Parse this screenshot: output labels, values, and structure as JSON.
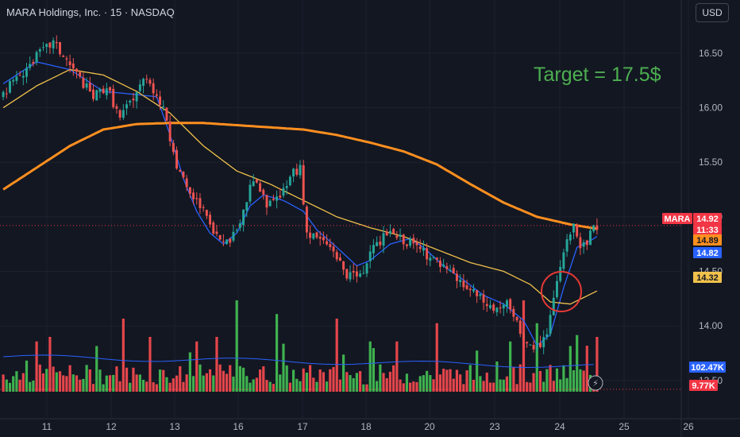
{
  "header": {
    "title": "MARA Holdings, Inc. · 15 · NASDAQ",
    "currency_button": "USD"
  },
  "annotation": {
    "target_text": "Target = 17.5$",
    "circle_color": "#e53935"
  },
  "colors": {
    "background": "#131722",
    "up": "#26a69a",
    "down": "#ef5350",
    "vol_up": "#3fb24f",
    "vol_down": "#e5464b",
    "ma_fast": "#2962ff",
    "ma_mid": "#f0c14b",
    "ma_slow": "#ff8f1f",
    "volume_ma": "#2962ff"
  },
  "chart_data": {
    "type": "candlestick",
    "title": "",
    "xlabel": "",
    "ylabel": "",
    "ylim": [
      13.2,
      16.9
    ],
    "x_ticks": [
      "11",
      "12",
      "13",
      "16",
      "17",
      "18",
      "20",
      "23",
      "24",
      "25",
      "26"
    ],
    "y_ticks": [
      "16.50",
      "16.00",
      "15.50",
      "15.00",
      "14.50",
      "14.00",
      "13.50"
    ],
    "price_anchors": [
      [
        0,
        16.1
      ],
      [
        6,
        16.3
      ],
      [
        12,
        16.5
      ],
      [
        16,
        16.6
      ],
      [
        22,
        16.35
      ],
      [
        28,
        16.1
      ],
      [
        32,
        16.2
      ],
      [
        36,
        15.9
      ],
      [
        40,
        16.1
      ],
      [
        44,
        16.3
      ],
      [
        48,
        16.05
      ],
      [
        50,
        15.9
      ],
      [
        52,
        15.55
      ],
      [
        56,
        15.25
      ],
      [
        60,
        15.1
      ],
      [
        64,
        14.85
      ],
      [
        68,
        14.75
      ],
      [
        72,
        14.95
      ],
      [
        76,
        15.35
      ],
      [
        80,
        15.1
      ],
      [
        84,
        15.2
      ],
      [
        88,
        15.4
      ],
      [
        90,
        15.45
      ],
      [
        92,
        14.85
      ],
      [
        96,
        14.8
      ],
      [
        100,
        14.7
      ],
      [
        104,
        14.45
      ],
      [
        108,
        14.45
      ],
      [
        112,
        14.7
      ],
      [
        116,
        14.85
      ],
      [
        120,
        14.8
      ],
      [
        124,
        14.75
      ],
      [
        128,
        14.65
      ],
      [
        132,
        14.55
      ],
      [
        136,
        14.45
      ],
      [
        140,
        14.35
      ],
      [
        144,
        14.25
      ],
      [
        148,
        14.15
      ],
      [
        152,
        14.2
      ],
      [
        156,
        13.95
      ],
      [
        160,
        13.75
      ],
      [
        164,
        13.95
      ],
      [
        166,
        14.25
      ],
      [
        168,
        14.5
      ],
      [
        170,
        14.78
      ],
      [
        172,
        14.98
      ],
      [
        174,
        14.72
      ],
      [
        176,
        14.78
      ],
      [
        178,
        14.92
      ]
    ],
    "candle_count": 179,
    "moving_averages": [
      {
        "color": "#2962ff",
        "width": 1.3,
        "points": [
          [
            0,
            16.22
          ],
          [
            10,
            16.42
          ],
          [
            20,
            16.35
          ],
          [
            30,
            16.15
          ],
          [
            40,
            16.12
          ],
          [
            46,
            16.1
          ],
          [
            50,
            15.75
          ],
          [
            54,
            15.35
          ],
          [
            58,
            15.05
          ],
          [
            62,
            14.85
          ],
          [
            66,
            14.75
          ],
          [
            70,
            14.85
          ],
          [
            74,
            15.1
          ],
          [
            78,
            15.2
          ],
          [
            84,
            15.15
          ],
          [
            90,
            15.05
          ],
          [
            94,
            14.88
          ],
          [
            100,
            14.72
          ],
          [
            106,
            14.55
          ],
          [
            110,
            14.6
          ],
          [
            116,
            14.75
          ],
          [
            122,
            14.8
          ],
          [
            126,
            14.72
          ],
          [
            132,
            14.55
          ],
          [
            138,
            14.42
          ],
          [
            144,
            14.28
          ],
          [
            150,
            14.2
          ],
          [
            156,
            14.05
          ],
          [
            160,
            13.82
          ],
          [
            164,
            13.92
          ],
          [
            168,
            14.35
          ],
          [
            172,
            14.72
          ],
          [
            176,
            14.78
          ],
          [
            178,
            14.82
          ]
        ]
      },
      {
        "color": "#f0c14b",
        "width": 1.3,
        "points": [
          [
            0,
            16.0
          ],
          [
            10,
            16.2
          ],
          [
            20,
            16.35
          ],
          [
            30,
            16.3
          ],
          [
            40,
            16.15
          ],
          [
            50,
            15.95
          ],
          [
            60,
            15.65
          ],
          [
            70,
            15.42
          ],
          [
            80,
            15.3
          ],
          [
            90,
            15.15
          ],
          [
            100,
            15.0
          ],
          [
            110,
            14.9
          ],
          [
            120,
            14.82
          ],
          [
            130,
            14.7
          ],
          [
            140,
            14.58
          ],
          [
            150,
            14.5
          ],
          [
            158,
            14.38
          ],
          [
            164,
            14.22
          ],
          [
            170,
            14.2
          ],
          [
            178,
            14.32
          ]
        ]
      },
      {
        "color": "#ff8f1f",
        "width": 3,
        "points": [
          [
            0,
            15.25
          ],
          [
            10,
            15.45
          ],
          [
            20,
            15.65
          ],
          [
            30,
            15.8
          ],
          [
            40,
            15.85
          ],
          [
            50,
            15.86
          ],
          [
            60,
            15.86
          ],
          [
            70,
            15.84
          ],
          [
            80,
            15.82
          ],
          [
            90,
            15.8
          ],
          [
            100,
            15.75
          ],
          [
            110,
            15.68
          ],
          [
            120,
            15.6
          ],
          [
            130,
            15.48
          ],
          [
            140,
            15.3
          ],
          [
            150,
            15.13
          ],
          [
            160,
            15.0
          ],
          [
            170,
            14.93
          ],
          [
            178,
            14.89
          ]
        ]
      }
    ],
    "price_labels": [
      {
        "text": "MARA",
        "value": 14.92,
        "bg": "#f23645",
        "fg": "#ffffff"
      },
      {
        "text": "14.92",
        "value": 14.92,
        "bg": "#f23645",
        "fg": "#ffffff"
      },
      {
        "text": "11:33",
        "value": 14.92,
        "bg": "#f23645",
        "fg": "#ffffff"
      },
      {
        "text": "14.89",
        "value": 14.89,
        "bg": "#ff8f1f",
        "fg": "#131722"
      },
      {
        "text": "14.82",
        "value": 14.82,
        "bg": "#2962ff",
        "fg": "#ffffff"
      },
      {
        "text": "14.32",
        "value": 14.32,
        "bg": "#f0c14b",
        "fg": "#131722"
      }
    ],
    "volume_labels": [
      {
        "text": "102.47K",
        "bg": "#2962ff",
        "fg": "#ffffff"
      },
      {
        "text": "9.77K",
        "bg": "#f23645",
        "fg": "#ffffff"
      }
    ],
    "volume_spikes": [
      [
        10,
        0.55
      ],
      [
        14,
        0.6
      ],
      [
        28,
        0.5
      ],
      [
        36,
        0.8
      ],
      [
        44,
        0.6
      ],
      [
        58,
        0.55
      ],
      [
        64,
        0.6
      ],
      [
        70,
        1.0
      ],
      [
        82,
        0.85
      ],
      [
        100,
        0.8
      ],
      [
        110,
        0.55
      ],
      [
        118,
        0.55
      ],
      [
        130,
        0.75
      ],
      [
        142,
        0.45
      ],
      [
        152,
        0.55
      ],
      [
        156,
        1.0
      ],
      [
        160,
        0.75
      ],
      [
        170,
        0.5
      ],
      [
        172,
        0.62
      ],
      [
        178,
        0.6
      ]
    ]
  }
}
